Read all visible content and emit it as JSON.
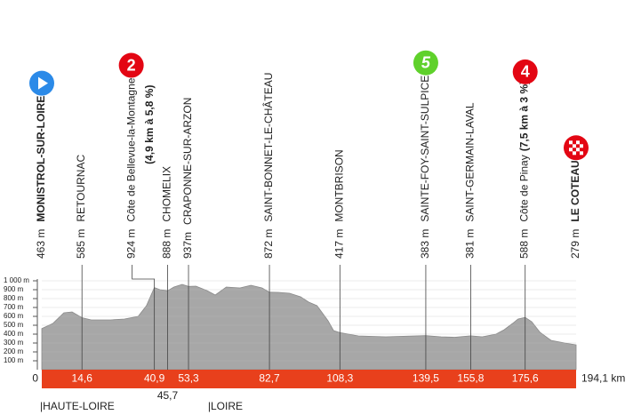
{
  "chart_data": {
    "type": "area",
    "color": "#a7a7a7",
    "band_color": "#e8401c",
    "x": [
      0,
      4,
      8,
      11,
      14.6,
      18,
      25,
      30,
      35,
      38,
      40.9,
      43,
      45.7,
      48,
      51,
      53.3,
      56,
      60,
      63,
      67,
      72,
      76,
      80,
      82.7,
      86,
      90,
      94,
      97,
      100,
      104,
      106,
      108.3,
      115,
      125,
      130,
      139.5,
      145,
      150,
      155.8,
      160,
      165,
      168,
      171,
      173,
      175.6,
      178,
      181,
      185,
      190,
      194.1
    ],
    "values": [
      463,
      520,
      640,
      650,
      585,
      560,
      560,
      570,
      600,
      720,
      924,
      900,
      888,
      930,
      960,
      937,
      940,
      890,
      840,
      930,
      920,
      950,
      920,
      872,
      870,
      860,
      820,
      760,
      720,
      550,
      440,
      417,
      380,
      370,
      375,
      383,
      370,
      365,
      381,
      370,
      400,
      450,
      520,
      570,
      588,
      540,
      420,
      330,
      300,
      279
    ],
    "xlim": [
      0,
      194.1
    ],
    "ylim": [
      0,
      1000
    ],
    "yticks": [
      {
        "value": 100,
        "label": "100 m"
      },
      {
        "value": 200,
        "label": "200 m"
      },
      {
        "value": 300,
        "label": "300 m"
      },
      {
        "value": 400,
        "label": "400 m"
      },
      {
        "value": 500,
        "label": "500 m"
      },
      {
        "value": 600,
        "label": "600 m"
      },
      {
        "value": 700,
        "label": "700 m"
      },
      {
        "value": 800,
        "label": "800 m"
      },
      {
        "value": 900,
        "label": "900 m"
      },
      {
        "value": 1000,
        "label": "1 000 m"
      }
    ],
    "xticks": [
      0,
      {
        "value": 14.6,
        "label": "14,6"
      },
      {
        "value": 40.9,
        "label": "40,9"
      },
      {
        "value": 45.7,
        "label": "45,7"
      },
      {
        "value": 53.3,
        "label": "53,3"
      },
      {
        "value": 82.7,
        "label": "82,7"
      },
      {
        "value": 108.3,
        "label": "108,3"
      },
      {
        "value": 139.5,
        "label": "139,5"
      },
      {
        "value": 155.8,
        "label": "155,8"
      },
      {
        "value": 175.6,
        "label": "175,6"
      },
      {
        "value": 194.1,
        "label": "194,1 km"
      }
    ],
    "waypoints": [
      {
        "altitude": "463 m",
        "name": "MONISTROL-SUR-LOIRE",
        "bold": true,
        "marker": "start"
      },
      {
        "altitude": "585 m",
        "name": "RETOURNAC"
      },
      {
        "altitude": "924 m",
        "name": "Côte de Bellevue-la-Montagne",
        "detail": "(4,9 km à 5,8 %)",
        "marker": "climb",
        "marker_label": "2"
      },
      {
        "altitude": "888 m",
        "name": "CHOMELIX"
      },
      {
        "altitude": "937m",
        "name": "CRAPONNE-SUR-ARZON"
      },
      {
        "altitude": "872 m",
        "name": "SAINT-BONNET-LE-CHÂTEAU"
      },
      {
        "altitude": "417 m",
        "name": "MONTBRISON"
      },
      {
        "altitude": "383 m",
        "name": "SAINTE-FOY-SAINT-SULPICE",
        "marker": "sprint",
        "marker_label": "5"
      },
      {
        "altitude": "381 m",
        "name": "SAINT-GERMAIN-LAVAL"
      },
      {
        "altitude": "588 m",
        "name": "Côte de Pinay",
        "detail": "(7,5 km à 3 %)",
        "marker": "climb",
        "marker_label": "4"
      },
      {
        "altitude": "279 m",
        "name": "LE COTEAU",
        "bold": true,
        "marker": "finish"
      }
    ],
    "regions": [
      {
        "label": "|HAUTE-LOIRE",
        "km": 0
      },
      {
        "label": "|LOIRE",
        "km": 61
      }
    ]
  }
}
